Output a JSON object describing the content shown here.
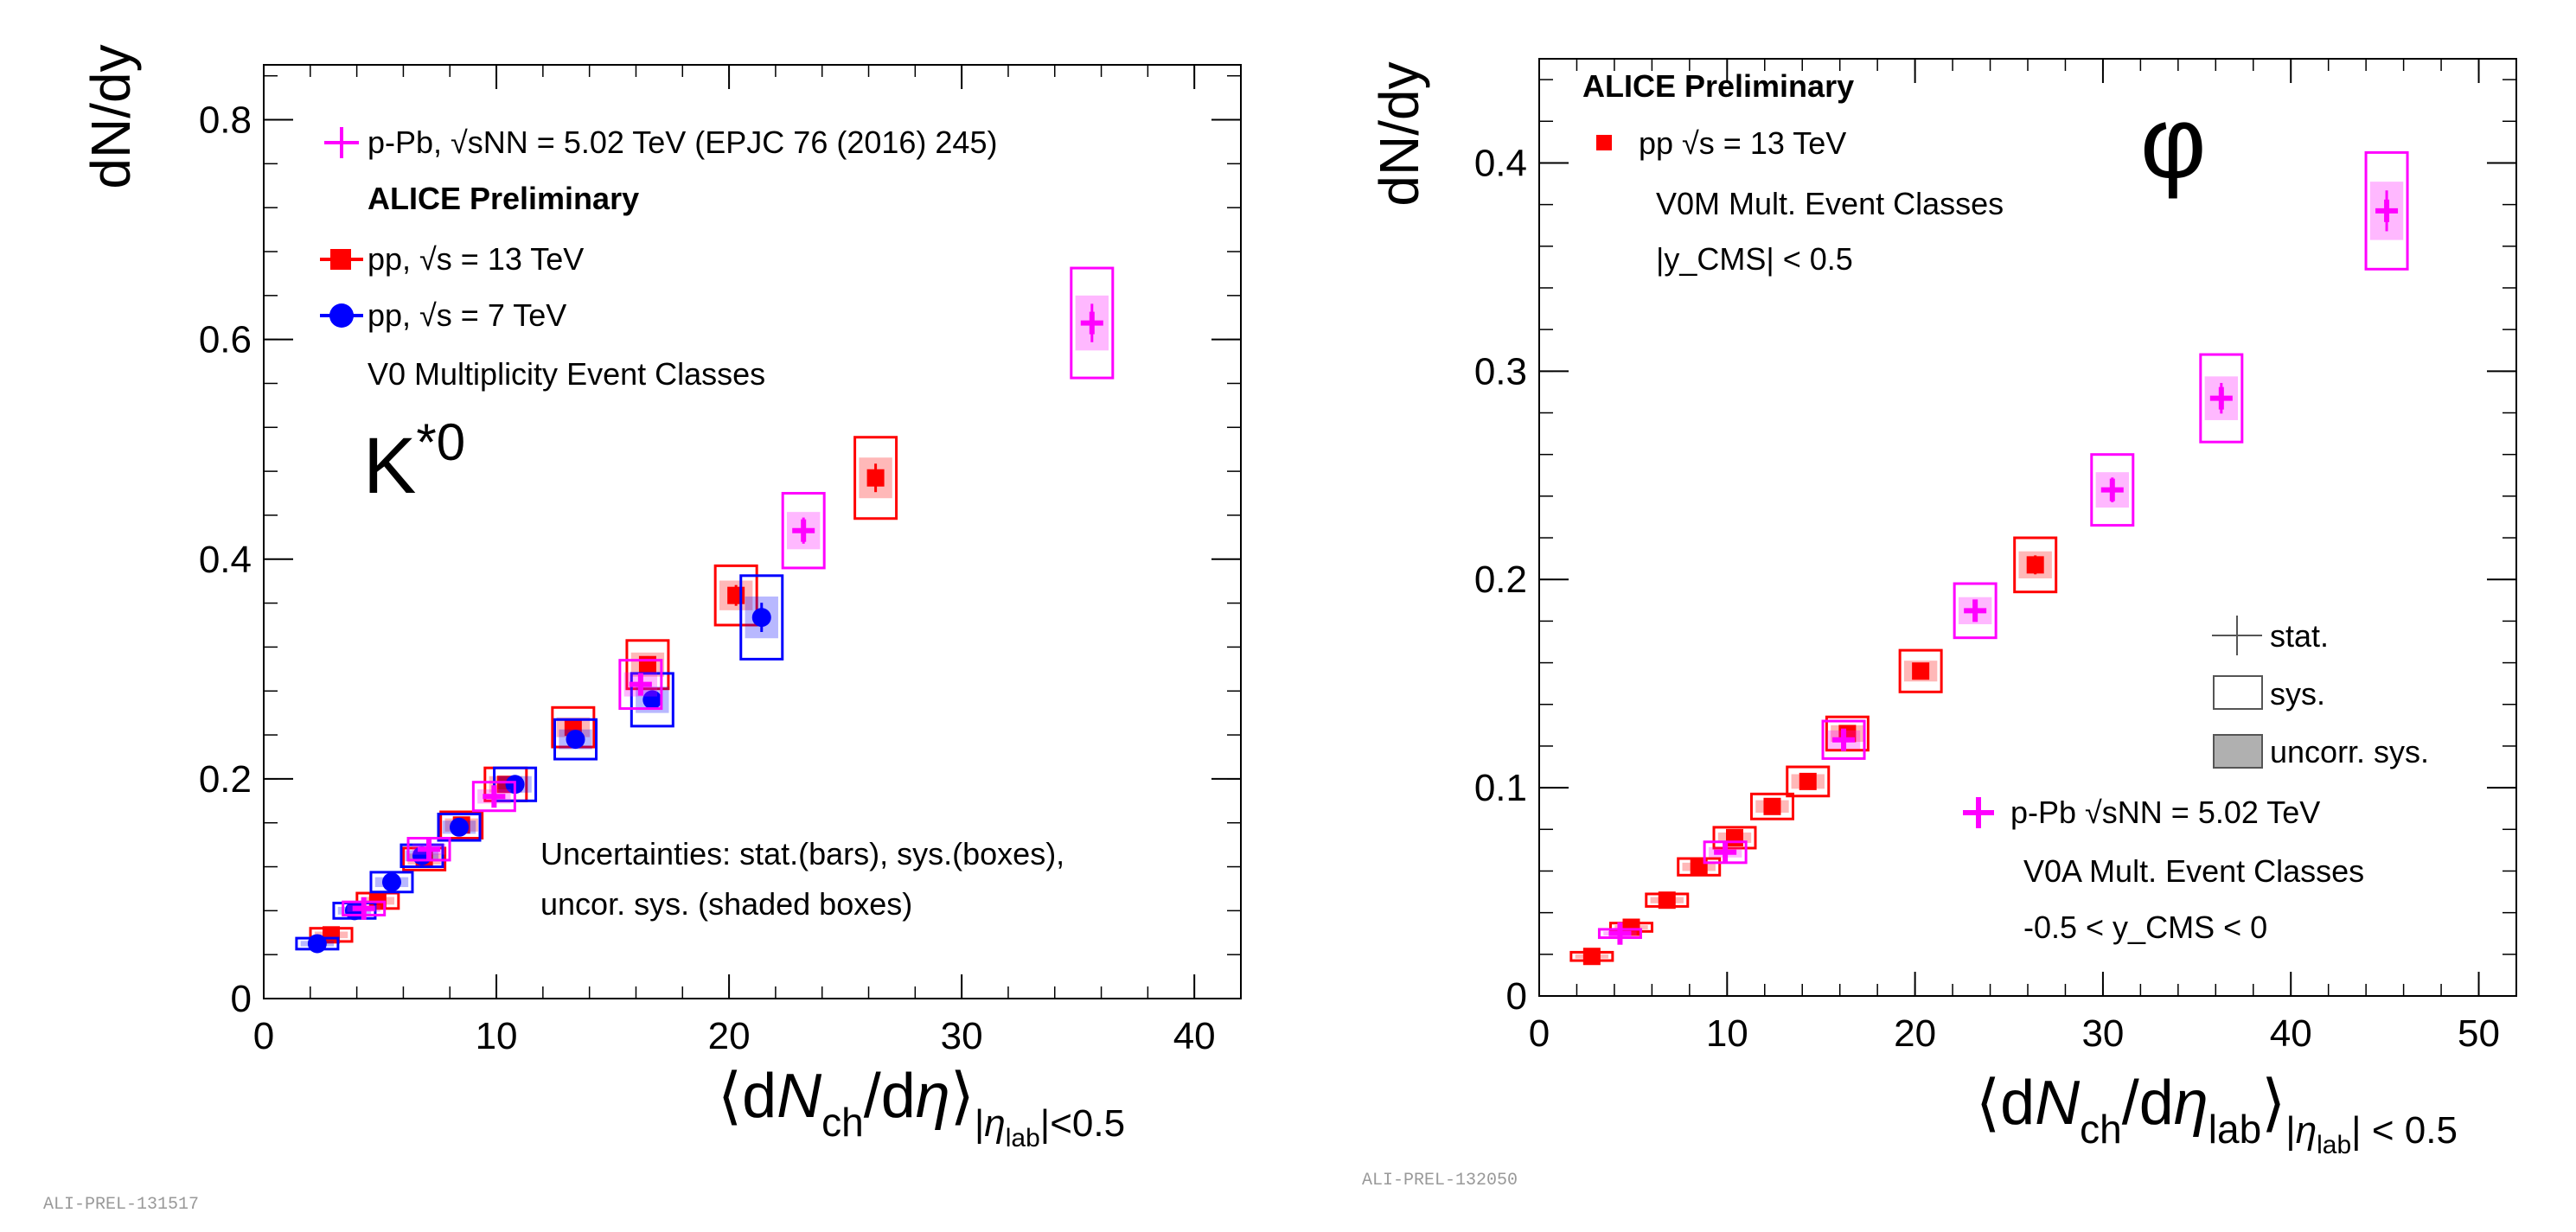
{
  "chart_data": [
    {
      "type": "scatter",
      "ylabel": "dN/dy",
      "xlabel": "⟨dN_ch/dη⟩_{|η_lab|<0.5}",
      "xlim": [
        0,
        42
      ],
      "ylim": [
        0,
        0.85
      ],
      "xticks": [
        "0",
        "10",
        "20",
        "30",
        "40"
      ],
      "yticks": [
        "0",
        "0.2",
        "0.4",
        "0.6",
        "0.8"
      ],
      "particle": "K*0",
      "preliminary": "ALICE Preliminary",
      "figure_id": "ALI-PREL-131517",
      "legend": [
        "p-Pb, √sNN = 5.02 TeV (EPJC 76 (2016) 245)",
        "pp, √s = 13 TeV",
        "pp, √s = 7 TeV"
      ],
      "note": "V0 Multiplicity Event Classes",
      "uncertainty_lines": [
        "Uncertainties: stat.(bars), sys.(boxes),",
        "uncor. sys. (shaded boxes)"
      ],
      "series": [
        {
          "name": "pp 13 TeV",
          "color": "#ff0000",
          "marker": "square",
          "x": [
            2.9,
            4.9,
            6.9,
            8.5,
            10.4,
            13.3,
            16.5,
            20.3,
            26.3
          ],
          "y": [
            0.058,
            0.089,
            0.127,
            0.158,
            0.195,
            0.247,
            0.304,
            0.367,
            0.474
          ],
          "sys": [
            0.006,
            0.007,
            0.01,
            0.012,
            0.015,
            0.018,
            0.022,
            0.027,
            0.037
          ]
        },
        {
          "name": "pp 7 TeV",
          "color": "#0000ff",
          "marker": "circle",
          "x": [
            2.3,
            3.9,
            5.5,
            6.8,
            8.4,
            10.8,
            13.4,
            16.7,
            21.4
          ],
          "y": [
            0.05,
            0.08,
            0.106,
            0.13,
            0.156,
            0.195,
            0.236,
            0.272,
            0.347
          ],
          "sys": [
            0.005,
            0.007,
            0.009,
            0.01,
            0.012,
            0.015,
            0.018,
            0.024,
            0.038
          ]
        },
        {
          "name": "p-Pb 5.02 TeV",
          "color": "#ff00ff",
          "marker": "plus",
          "x": [
            4.3,
            7.1,
            9.9,
            16.2,
            23.2,
            35.6
          ],
          "y": [
            0.082,
            0.136,
            0.184,
            0.286,
            0.426,
            0.615
          ],
          "sys": [
            0.006,
            0.01,
            0.013,
            0.022,
            0.034,
            0.05
          ]
        }
      ]
    },
    {
      "type": "scatter",
      "ylabel": "dN/dy",
      "xlabel": "⟨dN_ch/dη_lab⟩_{|η_lab| < 0.5}",
      "xlim": [
        0,
        52
      ],
      "ylim": [
        0,
        0.45
      ],
      "xticks": [
        "0",
        "10",
        "20",
        "30",
        "40",
        "50"
      ],
      "yticks": [
        "0",
        "0.1",
        "0.2",
        "0.3",
        "0.4"
      ],
      "particle": "φ",
      "preliminary": "ALICE Preliminary",
      "figure_id": "ALI-PREL-132050",
      "pp_lines": [
        "pp √s = 13 TeV",
        "V0M Mult. Event Classes",
        "|y_CMS| < 0.5"
      ],
      "ppb_lines": [
        "p-Pb √sNN = 5.02 TeV",
        "V0A Mult. Event Classes",
        "-0.5 < y_CMS < 0"
      ],
      "legend_keys": [
        "stat.",
        "sys.",
        "uncorr. sys."
      ],
      "series": [
        {
          "name": "pp 13 TeV",
          "color": "#ff0000",
          "marker": "square",
          "x": [
            2.8,
            4.9,
            6.8,
            8.5,
            10.4,
            12.4,
            14.3,
            16.4,
            20.3,
            26.4
          ],
          "y": [
            0.019,
            0.033,
            0.046,
            0.062,
            0.076,
            0.091,
            0.103,
            0.126,
            0.156,
            0.207
          ],
          "sys": [
            0.002,
            0.002,
            0.003,
            0.004,
            0.005,
            0.006,
            0.007,
            0.008,
            0.01,
            0.013
          ]
        },
        {
          "name": "p-Pb 5.02 TeV",
          "color": "#ff00ff",
          "marker": "plus",
          "x": [
            4.3,
            9.9,
            16.2,
            23.2,
            30.5,
            36.3,
            45.1
          ],
          "y": [
            0.03,
            0.069,
            0.123,
            0.185,
            0.243,
            0.287,
            0.377
          ],
          "sys": [
            0.002,
            0.005,
            0.009,
            0.013,
            0.017,
            0.021,
            0.028
          ]
        }
      ]
    }
  ]
}
